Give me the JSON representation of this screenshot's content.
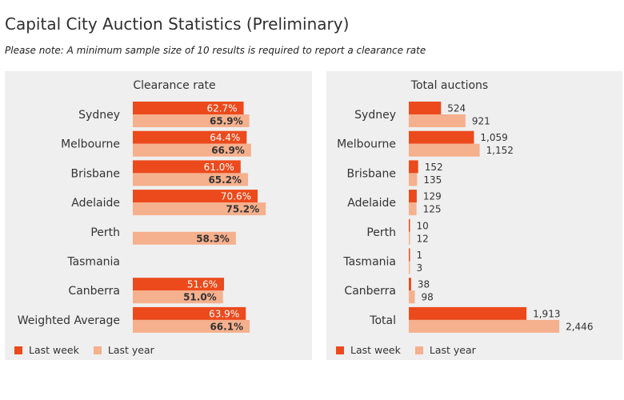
{
  "page": {
    "title": "Capital City Auction Statistics (Preliminary)",
    "subtitle": "Please note: A minimum sample size of 10 results is required to report a clearance rate"
  },
  "colors": {
    "last_week": "#ec4a1c",
    "last_year": "#f5b08d",
    "panel_bg": "#efefef"
  },
  "chart_data": [
    {
      "type": "bar",
      "orientation": "horizontal",
      "title": "Clearance rate",
      "categories": [
        "Sydney",
        "Melbourne",
        "Brisbane",
        "Adelaide",
        "Perth",
        "Tasmania",
        "Canberra",
        "Weighted Average"
      ],
      "series": [
        {
          "name": "Last week",
          "values": [
            62.7,
            64.4,
            61.0,
            70.6,
            null,
            null,
            51.6,
            63.9
          ],
          "labels": [
            "62.7%",
            "64.4%",
            "61.0%",
            "70.6%",
            "",
            "",
            "51.6%",
            "63.9%"
          ]
        },
        {
          "name": "Last year",
          "values": [
            65.9,
            66.9,
            65.2,
            75.2,
            58.3,
            null,
            51.0,
            66.1
          ],
          "labels": [
            "65.9%",
            "66.9%",
            "65.2%",
            "75.2%",
            "58.3%",
            "",
            "51.0%",
            "66.1%"
          ]
        }
      ],
      "label_position": "inside-end",
      "legend": "bottom-left",
      "grid": false
    },
    {
      "type": "bar",
      "orientation": "horizontal",
      "title": "Total auctions",
      "categories": [
        "Sydney",
        "Melbourne",
        "Brisbane",
        "Adelaide",
        "Perth",
        "Tasmania",
        "Canberra",
        "Total"
      ],
      "series": [
        {
          "name": "Last week",
          "values": [
            524,
            1059,
            152,
            129,
            10,
            1,
            38,
            1913
          ],
          "labels": [
            "524",
            "1,059",
            "152",
            "129",
            "10",
            "1",
            "38",
            "1,913"
          ]
        },
        {
          "name": "Last year",
          "values": [
            921,
            1152,
            135,
            125,
            12,
            3,
            98,
            2446
          ],
          "labels": [
            "921",
            "1,152",
            "135",
            "125",
            "12",
            "3",
            "98",
            "2,446"
          ]
        }
      ],
      "label_position": "outside-end",
      "legend": "bottom-left",
      "grid": false
    }
  ]
}
